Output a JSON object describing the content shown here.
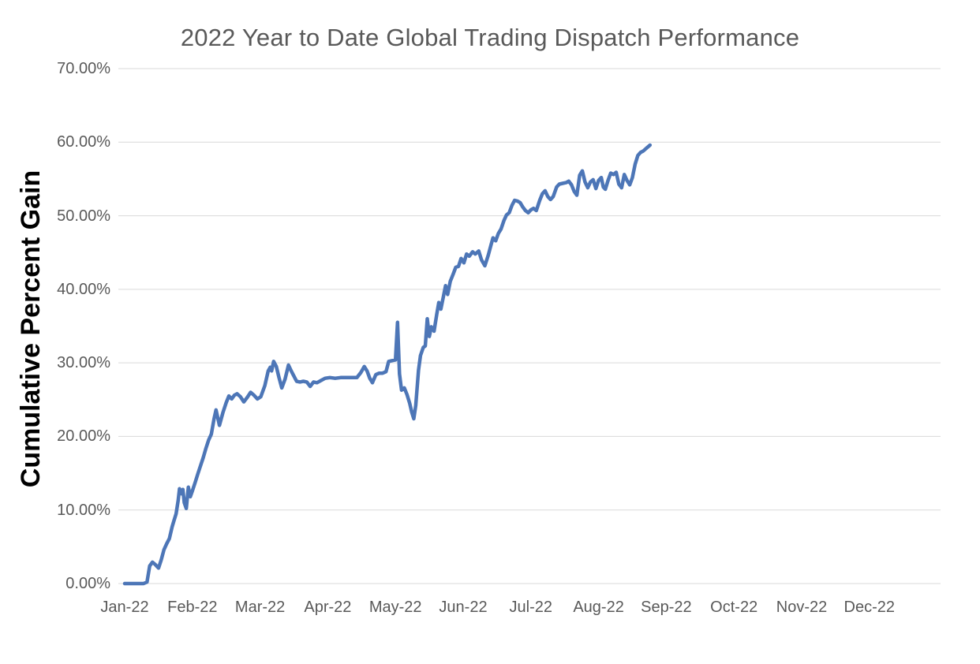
{
  "title": "2022 Year to Date Global Trading Dispatch Performance",
  "colors": {
    "background": "#FFFFFF",
    "title_text": "#595959",
    "tick_text": "#595959",
    "y_axis_title_text": "#000000",
    "gridline": "#D9D9D9",
    "line": "#4D76B7"
  },
  "chart_data": {
    "type": "line",
    "title": "2022 Year to Date Global Trading Dispatch Performance",
    "xlabel": "",
    "ylabel": "Cumulative Percent Gain",
    "ylim": [
      0,
      70
    ],
    "y_ticks": [
      {
        "value": 0,
        "label": "0.00%"
      },
      {
        "value": 10,
        "label": "10.00%"
      },
      {
        "value": 20,
        "label": "20.00%"
      },
      {
        "value": 30,
        "label": "30.00%"
      },
      {
        "value": 40,
        "label": "40.00%"
      },
      {
        "value": 50,
        "label": "50.00%"
      },
      {
        "value": 60,
        "label": "60.00%"
      },
      {
        "value": 70,
        "label": "70.00%"
      }
    ],
    "x_tick_labels": [
      "Jan-22",
      "Feb-22",
      "Mar-22",
      "Apr-22",
      "May-22",
      "Jun-22",
      "Jul-22",
      "Aug-22",
      "Sep-22",
      "Oct-22",
      "Nov-22",
      "Dec-22"
    ],
    "grid": "horizontal",
    "legend": "none",
    "series": [
      {
        "name": "Cumulative Percent Gain",
        "color": "#4D76B7",
        "x_unit": "months_since_jan_2022",
        "points": [
          [
            0.0,
            0.0
          ],
          [
            0.1,
            0.0
          ],
          [
            0.2,
            0.0
          ],
          [
            0.28,
            0.0
          ],
          [
            0.33,
            0.2
          ],
          [
            0.37,
            2.4
          ],
          [
            0.41,
            2.9
          ],
          [
            0.45,
            2.6
          ],
          [
            0.5,
            2.1
          ],
          [
            0.54,
            3.2
          ],
          [
            0.58,
            4.6
          ],
          [
            0.62,
            5.4
          ],
          [
            0.66,
            6.1
          ],
          [
            0.7,
            7.7
          ],
          [
            0.73,
            8.6
          ],
          [
            0.76,
            9.5
          ],
          [
            0.79,
            11.3
          ],
          [
            0.81,
            12.9
          ],
          [
            0.84,
            12.2
          ],
          [
            0.86,
            12.8
          ],
          [
            0.88,
            11.0
          ],
          [
            0.91,
            10.2
          ],
          [
            0.94,
            13.1
          ],
          [
            0.97,
            11.8
          ],
          [
            1.0,
            12.6
          ],
          [
            1.04,
            13.7
          ],
          [
            1.08,
            14.9
          ],
          [
            1.12,
            16.0
          ],
          [
            1.16,
            17.1
          ],
          [
            1.2,
            18.4
          ],
          [
            1.24,
            19.5
          ],
          [
            1.28,
            20.3
          ],
          [
            1.32,
            22.4
          ],
          [
            1.35,
            23.6
          ],
          [
            1.4,
            21.5
          ],
          [
            1.45,
            23.2
          ],
          [
            1.5,
            24.6
          ],
          [
            1.54,
            25.5
          ],
          [
            1.58,
            25.1
          ],
          [
            1.62,
            25.6
          ],
          [
            1.66,
            25.8
          ],
          [
            1.71,
            25.4
          ],
          [
            1.76,
            24.7
          ],
          [
            1.81,
            25.3
          ],
          [
            1.86,
            26.0
          ],
          [
            1.91,
            25.6
          ],
          [
            1.96,
            25.1
          ],
          [
            2.01,
            25.4
          ],
          [
            2.07,
            26.9
          ],
          [
            2.12,
            28.9
          ],
          [
            2.15,
            29.4
          ],
          [
            2.17,
            28.9
          ],
          [
            2.2,
            30.2
          ],
          [
            2.24,
            29.5
          ],
          [
            2.28,
            28.0
          ],
          [
            2.32,
            26.6
          ],
          [
            2.37,
            27.8
          ],
          [
            2.42,
            29.7
          ],
          [
            2.46,
            28.9
          ],
          [
            2.5,
            28.2
          ],
          [
            2.54,
            27.5
          ],
          [
            2.59,
            27.4
          ],
          [
            2.64,
            27.5
          ],
          [
            2.69,
            27.4
          ],
          [
            2.74,
            26.8
          ],
          [
            2.79,
            27.4
          ],
          [
            2.84,
            27.3
          ],
          [
            2.9,
            27.6
          ],
          [
            2.96,
            27.9
          ],
          [
            3.03,
            28.0
          ],
          [
            3.11,
            27.9
          ],
          [
            3.19,
            28.0
          ],
          [
            3.27,
            28.0
          ],
          [
            3.35,
            28.0
          ],
          [
            3.43,
            28.0
          ],
          [
            3.49,
            28.7
          ],
          [
            3.54,
            29.5
          ],
          [
            3.58,
            28.9
          ],
          [
            3.62,
            27.9
          ],
          [
            3.66,
            27.3
          ],
          [
            3.71,
            28.4
          ],
          [
            3.76,
            28.6
          ],
          [
            3.81,
            28.6
          ],
          [
            3.86,
            28.8
          ],
          [
            3.9,
            30.2
          ],
          [
            3.95,
            30.3
          ],
          [
            4.0,
            30.4
          ],
          [
            4.03,
            35.5
          ],
          [
            4.06,
            28.5
          ],
          [
            4.09,
            26.3
          ],
          [
            4.13,
            26.6
          ],
          [
            4.17,
            25.7
          ],
          [
            4.21,
            24.5
          ],
          [
            4.24,
            23.3
          ],
          [
            4.27,
            22.4
          ],
          [
            4.3,
            24.2
          ],
          [
            4.34,
            29.0
          ],
          [
            4.37,
            31.0
          ],
          [
            4.41,
            32.1
          ],
          [
            4.44,
            32.3
          ],
          [
            4.47,
            36.0
          ],
          [
            4.5,
            33.6
          ],
          [
            4.53,
            34.9
          ],
          [
            4.57,
            34.3
          ],
          [
            4.61,
            36.6
          ],
          [
            4.64,
            38.2
          ],
          [
            4.67,
            37.3
          ],
          [
            4.71,
            39.1
          ],
          [
            4.74,
            40.5
          ],
          [
            4.77,
            39.3
          ],
          [
            4.81,
            41.1
          ],
          [
            4.85,
            42.0
          ],
          [
            4.89,
            43.0
          ],
          [
            4.93,
            43.1
          ],
          [
            4.97,
            44.2
          ],
          [
            5.01,
            43.6
          ],
          [
            5.05,
            44.8
          ],
          [
            5.09,
            44.5
          ],
          [
            5.14,
            45.1
          ],
          [
            5.18,
            44.8
          ],
          [
            5.23,
            45.2
          ],
          [
            5.27,
            44.0
          ],
          [
            5.32,
            43.2
          ],
          [
            5.37,
            44.6
          ],
          [
            5.41,
            46.0
          ],
          [
            5.44,
            47.0
          ],
          [
            5.48,
            46.6
          ],
          [
            5.52,
            47.6
          ],
          [
            5.56,
            48.2
          ],
          [
            5.6,
            49.3
          ],
          [
            5.64,
            50.1
          ],
          [
            5.68,
            50.4
          ],
          [
            5.72,
            51.4
          ],
          [
            5.76,
            52.1
          ],
          [
            5.8,
            52.0
          ],
          [
            5.84,
            51.8
          ],
          [
            5.88,
            51.2
          ],
          [
            5.92,
            50.7
          ],
          [
            5.96,
            50.4
          ],
          [
            6.0,
            50.8
          ],
          [
            6.04,
            51.0
          ],
          [
            6.08,
            50.7
          ],
          [
            6.13,
            52.1
          ],
          [
            6.17,
            53.0
          ],
          [
            6.21,
            53.4
          ],
          [
            6.25,
            52.6
          ],
          [
            6.29,
            52.2
          ],
          [
            6.33,
            52.6
          ],
          [
            6.38,
            53.9
          ],
          [
            6.42,
            54.3
          ],
          [
            6.47,
            54.4
          ],
          [
            6.52,
            54.5
          ],
          [
            6.56,
            54.7
          ],
          [
            6.6,
            54.2
          ],
          [
            6.64,
            53.3
          ],
          [
            6.68,
            52.8
          ],
          [
            6.72,
            55.5
          ],
          [
            6.76,
            56.1
          ],
          [
            6.8,
            54.6
          ],
          [
            6.84,
            53.8
          ],
          [
            6.88,
            54.6
          ],
          [
            6.92,
            54.9
          ],
          [
            6.96,
            53.7
          ],
          [
            7.0,
            54.8
          ],
          [
            7.04,
            55.2
          ],
          [
            7.07,
            53.9
          ],
          [
            7.1,
            53.6
          ],
          [
            7.14,
            54.8
          ],
          [
            7.18,
            55.8
          ],
          [
            7.22,
            55.6
          ],
          [
            7.26,
            55.9
          ],
          [
            7.3,
            54.3
          ],
          [
            7.34,
            53.8
          ],
          [
            7.38,
            55.6
          ],
          [
            7.42,
            54.8
          ],
          [
            7.46,
            54.2
          ],
          [
            7.5,
            55.2
          ],
          [
            7.54,
            57.0
          ],
          [
            7.58,
            58.2
          ],
          [
            7.62,
            58.6
          ],
          [
            7.66,
            58.8
          ],
          [
            7.71,
            59.2
          ],
          [
            7.76,
            59.6
          ]
        ]
      }
    ]
  }
}
